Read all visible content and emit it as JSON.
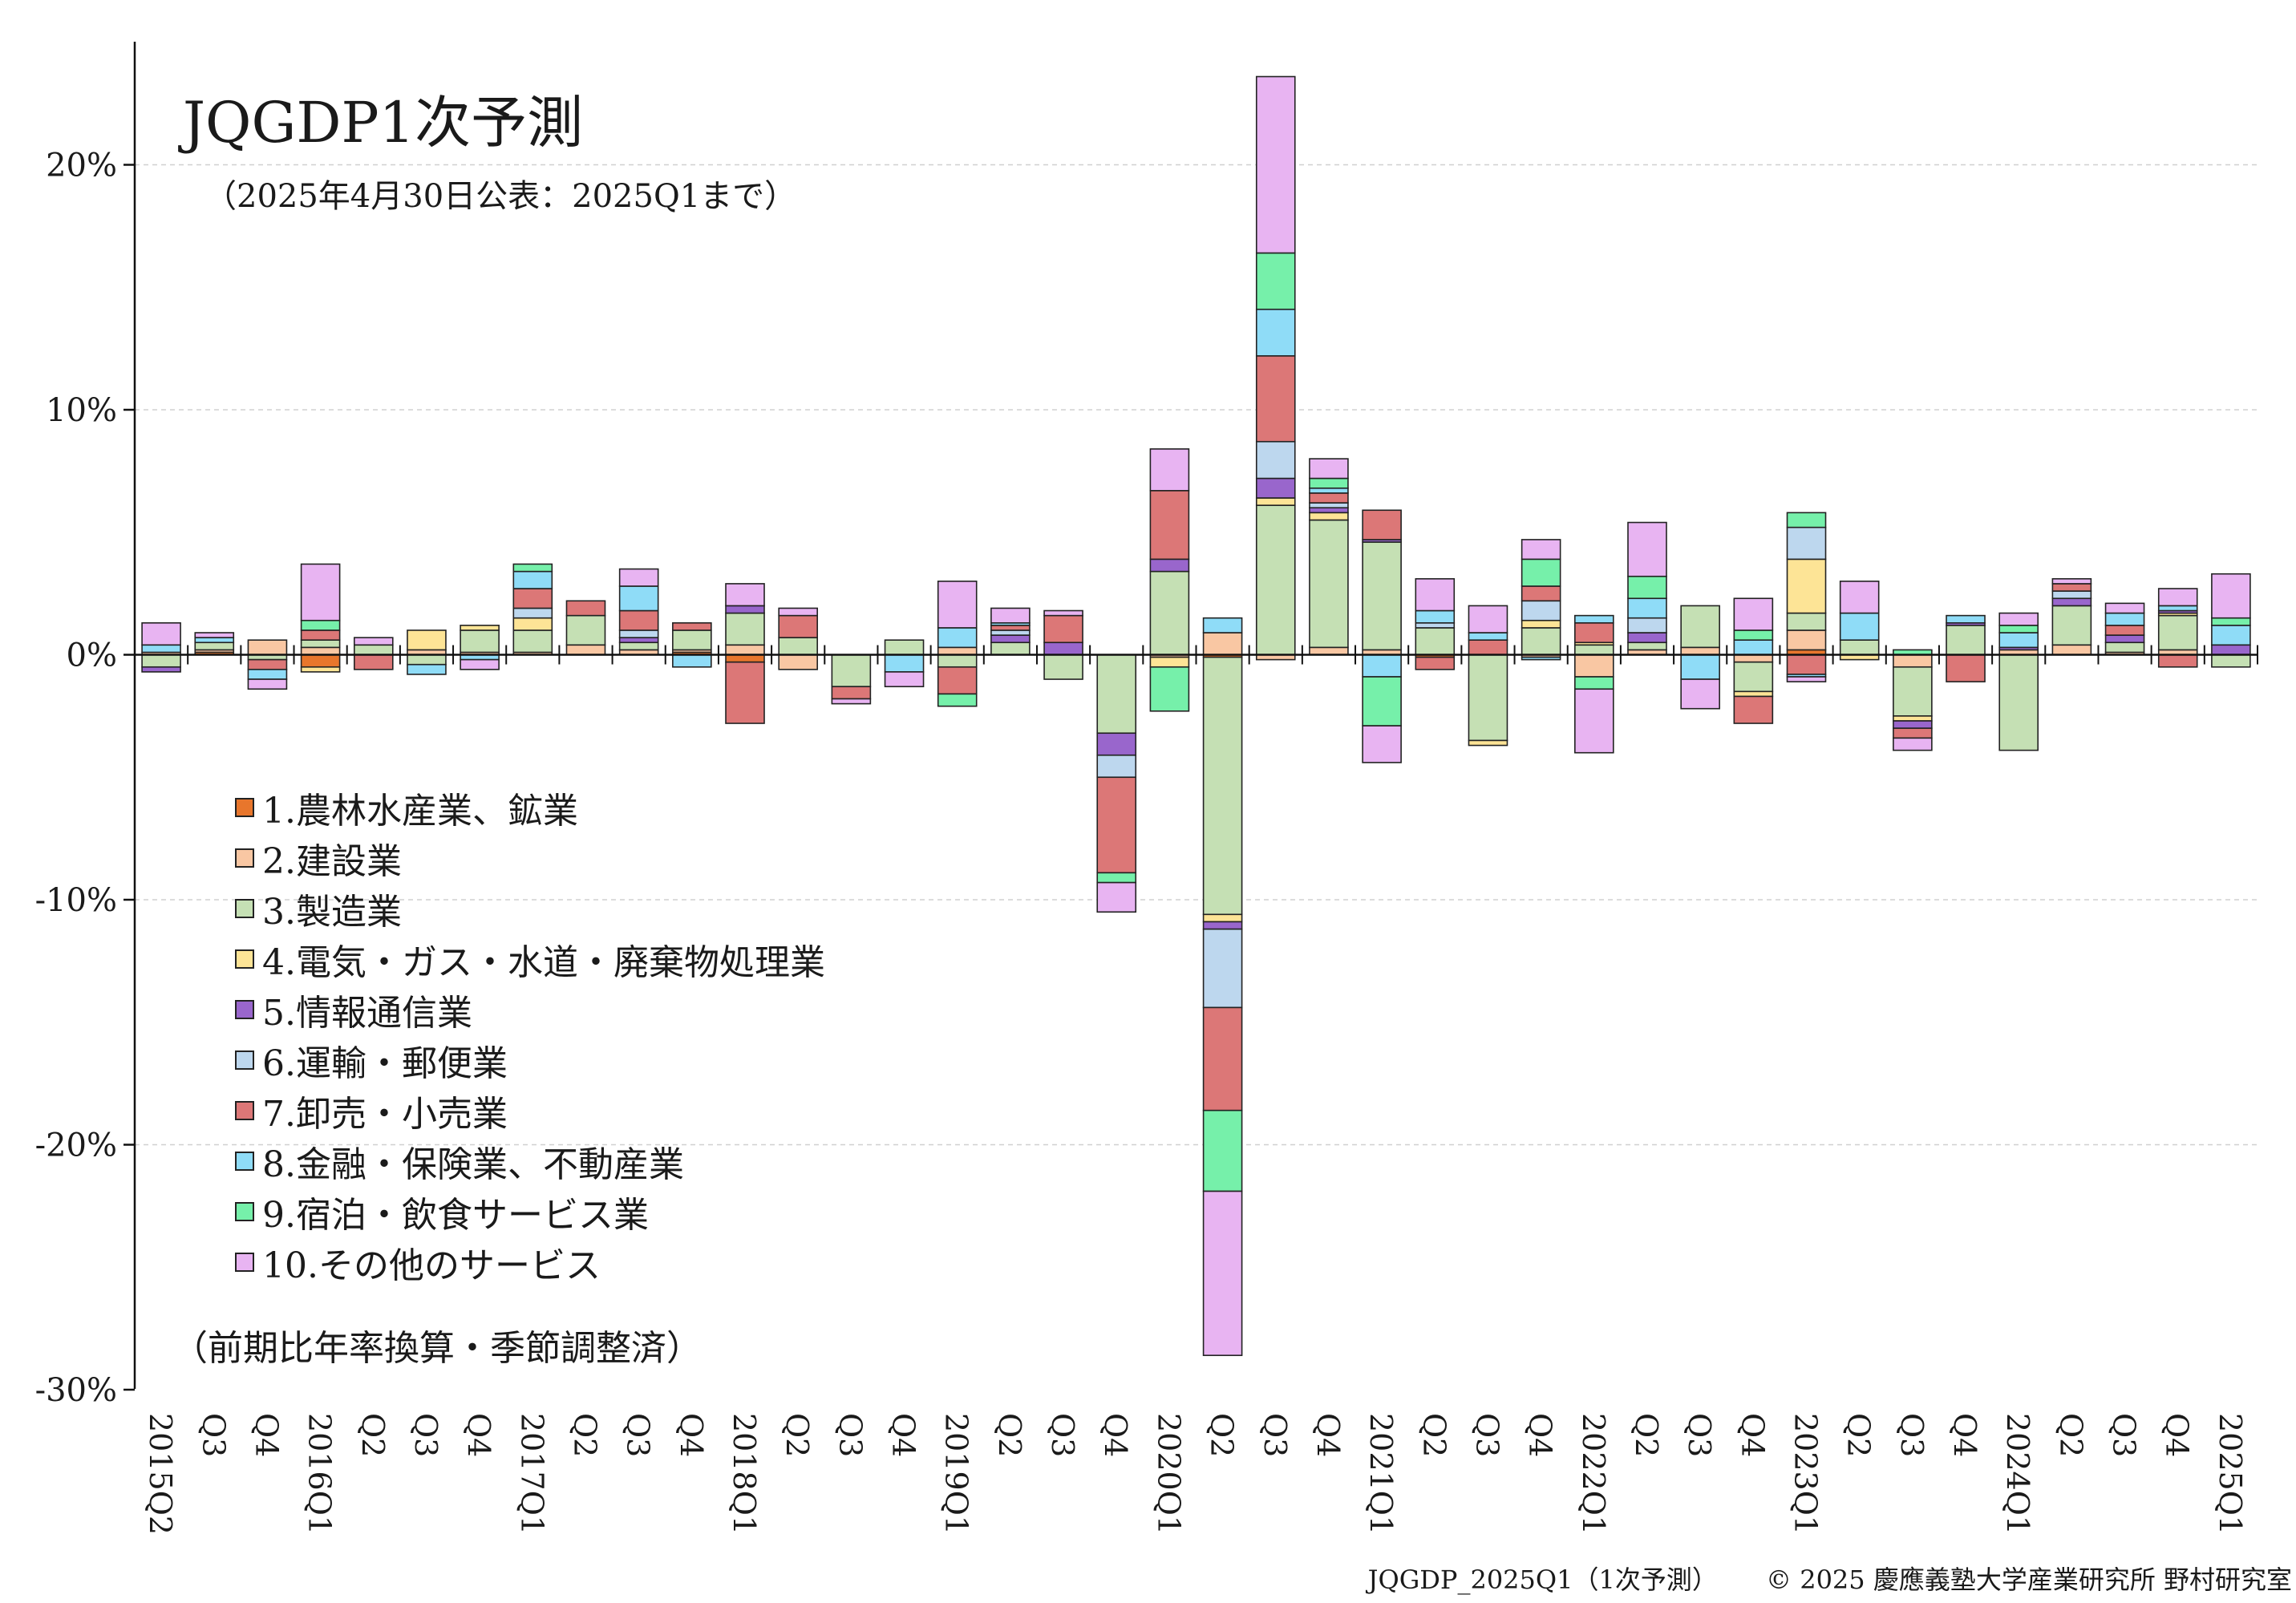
{
  "title": "JQGDP1次予測",
  "subtitle": "（2025年4月30日公表：2025Q1まで）",
  "note": "（前期比年率換算・季節調整済）",
  "footer": {
    "left": "JQGDP_2025Q1（1次予測）",
    "right": "© 2025 慶應義塾大学産業研究所 野村研究室"
  },
  "chart_data": {
    "type": "bar",
    "stacked": true,
    "ylim": [
      -30,
      24
    ],
    "y_ticks": [
      20,
      10,
      0,
      -10,
      -20,
      -30
    ],
    "y_tick_labels": [
      "20%",
      "10%",
      "0%",
      "-10%",
      "-20%",
      "-30%"
    ],
    "grid": "horizontal dashed",
    "legend_position": "left-middle",
    "categories": [
      "2015Q2",
      "Q3",
      "Q4",
      "2016Q1",
      "Q2",
      "Q3",
      "Q4",
      "2017Q1",
      "Q2",
      "Q3",
      "Q4",
      "2018Q1",
      "Q2",
      "Q3",
      "Q4",
      "2019Q1",
      "Q2",
      "Q3",
      "Q4",
      "2020Q1",
      "Q2",
      "Q3",
      "Q4",
      "2021Q1",
      "Q2",
      "Q3",
      "Q4",
      "2022Q1",
      "Q2",
      "Q3",
      "Q4",
      "2023Q1",
      "Q2",
      "Q3",
      "Q4",
      "2024Q1",
      "Q2",
      "Q3",
      "Q4",
      "2025Q1"
    ],
    "series": [
      {
        "name": "1.農林水産業、鉱業",
        "color": "#e8762c",
        "values": [
          0.0,
          0.1,
          0.0,
          -0.5,
          0.0,
          0.0,
          0.0,
          0.0,
          0.0,
          0.0,
          0.1,
          -0.3,
          0.0,
          0.0,
          0.0,
          0.0,
          0.0,
          0.0,
          0.0,
          0.0,
          -0.1,
          0.0,
          0.0,
          0.0,
          -0.1,
          0.0,
          0.0,
          0.0,
          0.0,
          0.0,
          0.0,
          0.2,
          0.0,
          0.0,
          0.0,
          0.0,
          0.0,
          0.0,
          0.0,
          0.0
        ]
      },
      {
        "name": "2.建設業",
        "color": "#f9c7a3",
        "values": [
          0.1,
          0.1,
          0.6,
          0.3,
          0.0,
          0.2,
          0.1,
          0.1,
          0.4,
          0.2,
          0.1,
          0.4,
          -0.6,
          0.0,
          0.0,
          0.3,
          0.0,
          0.0,
          0.0,
          -0.1,
          0.9,
          -0.2,
          0.3,
          0.2,
          0.0,
          0.0,
          -0.1,
          -0.9,
          0.2,
          0.3,
          -0.3,
          0.8,
          0.0,
          -0.5,
          0.0,
          0.2,
          0.4,
          0.1,
          0.2,
          0.0
        ]
      },
      {
        "name": "3.製造業",
        "color": "#c5e0b4",
        "values": [
          -0.5,
          0.3,
          -0.2,
          0.3,
          0.4,
          -0.4,
          0.9,
          0.9,
          1.2,
          0.3,
          0.8,
          1.3,
          0.7,
          -1.3,
          0.6,
          -0.5,
          0.5,
          -1.0,
          -3.2,
          3.4,
          -10.5,
          6.1,
          5.2,
          4.4,
          1.1,
          -3.5,
          1.1,
          0.4,
          0.3,
          1.7,
          -1.2,
          0.7,
          0.6,
          -2.0,
          1.2,
          -3.9,
          1.6,
          0.4,
          1.4,
          -0.5
        ]
      },
      {
        "name": "4.電気・ガス・水道・廃棄物処理業",
        "color": "#fde496",
        "values": [
          0.0,
          0.0,
          0.0,
          -0.2,
          0.0,
          0.8,
          0.2,
          0.5,
          0.0,
          0.0,
          0.0,
          0.0,
          0.0,
          0.0,
          0.0,
          0.0,
          0.0,
          0.0,
          0.0,
          -0.4,
          -0.3,
          0.3,
          0.3,
          0.0,
          0.0,
          -0.2,
          0.3,
          0.1,
          0.0,
          0.0,
          -0.2,
          2.2,
          -0.2,
          -0.2,
          0.0,
          0.0,
          0.0,
          0.0,
          0.1,
          0.0
        ]
      },
      {
        "name": "5.情報通信業",
        "color": "#9966cc",
        "values": [
          -0.2,
          0.0,
          0.0,
          0.0,
          0.0,
          0.0,
          0.0,
          0.0,
          0.0,
          0.2,
          0.0,
          0.3,
          0.0,
          0.0,
          0.0,
          0.0,
          0.3,
          0.5,
          -0.9,
          0.5,
          -0.3,
          0.8,
          0.2,
          0.1,
          0.0,
          0.0,
          0.0,
          0.0,
          0.4,
          0.0,
          0.0,
          0.0,
          0.0,
          -0.3,
          0.1,
          0.1,
          0.3,
          0.3,
          0.1,
          0.4
        ]
      },
      {
        "name": "6.運輸・郵便業",
        "color": "#bdd7ee",
        "values": [
          0.0,
          0.0,
          0.0,
          0.0,
          0.0,
          0.0,
          0.0,
          0.4,
          0.0,
          0.3,
          0.0,
          0.0,
          0.0,
          0.0,
          0.0,
          0.0,
          0.2,
          0.0,
          -0.9,
          0.0,
          -3.2,
          1.5,
          0.2,
          0.0,
          0.2,
          0.0,
          0.8,
          0.0,
          0.6,
          0.0,
          0.0,
          1.3,
          0.0,
          0.0,
          0.0,
          0.0,
          0.3,
          0.0,
          0.0,
          0.0
        ]
      },
      {
        "name": "7.卸売・小売業",
        "color": "#dc7777",
        "values": [
          0.0,
          0.0,
          -0.4,
          0.4,
          -0.6,
          0.0,
          0.0,
          0.8,
          0.6,
          0.8,
          0.3,
          -2.5,
          0.9,
          -0.5,
          0.0,
          -1.1,
          0.2,
          1.1,
          -3.9,
          2.8,
          -4.2,
          3.5,
          0.4,
          1.2,
          -0.5,
          0.6,
          0.6,
          0.8,
          0.0,
          0.0,
          -1.1,
          -0.8,
          0.0,
          -0.4,
          -1.1,
          0.0,
          0.3,
          0.4,
          -0.5,
          0.0
        ]
      },
      {
        "name": "8.金融・保険業、不動産業",
        "color": "#8fdcf7",
        "values": [
          0.3,
          0.2,
          -0.4,
          0.0,
          0.0,
          -0.4,
          -0.2,
          0.7,
          0.0,
          1.0,
          -0.5,
          0.0,
          0.0,
          0.0,
          -0.7,
          0.8,
          0.1,
          0.0,
          0.0,
          0.0,
          0.6,
          1.9,
          0.2,
          -0.9,
          0.5,
          0.3,
          -0.1,
          0.3,
          0.8,
          -1.0,
          0.6,
          -0.1,
          1.1,
          0.0,
          0.3,
          0.6,
          0.0,
          0.5,
          0.2,
          0.8
        ]
      },
      {
        "name": "9.宿泊・飲食サービス業",
        "color": "#76f0aa",
        "values": [
          0.0,
          0.0,
          0.0,
          0.4,
          0.0,
          0.0,
          0.0,
          0.3,
          0.0,
          0.0,
          0.0,
          0.0,
          0.0,
          0.0,
          0.0,
          -0.5,
          0.0,
          0.0,
          -0.4,
          -1.8,
          -3.3,
          2.3,
          0.4,
          -2.0,
          0.0,
          0.0,
          1.1,
          -0.5,
          0.9,
          0.0,
          0.4,
          0.6,
          0.0,
          0.2,
          0.0,
          0.3,
          0.0,
          0.0,
          0.0,
          0.3
        ]
      },
      {
        "name": "10.その他のサービス",
        "color": "#e8b4f2",
        "values": [
          0.9,
          0.2,
          -0.4,
          2.3,
          0.3,
          0.0,
          -0.4,
          0.0,
          0.0,
          0.7,
          0.0,
          0.9,
          0.3,
          -0.2,
          -0.6,
          1.9,
          0.6,
          0.2,
          -1.2,
          1.7,
          -6.7,
          7.2,
          0.8,
          -1.5,
          1.3,
          1.1,
          0.8,
          -2.6,
          2.2,
          -1.2,
          1.3,
          -0.2,
          1.3,
          -0.5,
          0.0,
          0.5,
          0.2,
          0.4,
          0.7,
          1.8
        ]
      }
    ]
  }
}
